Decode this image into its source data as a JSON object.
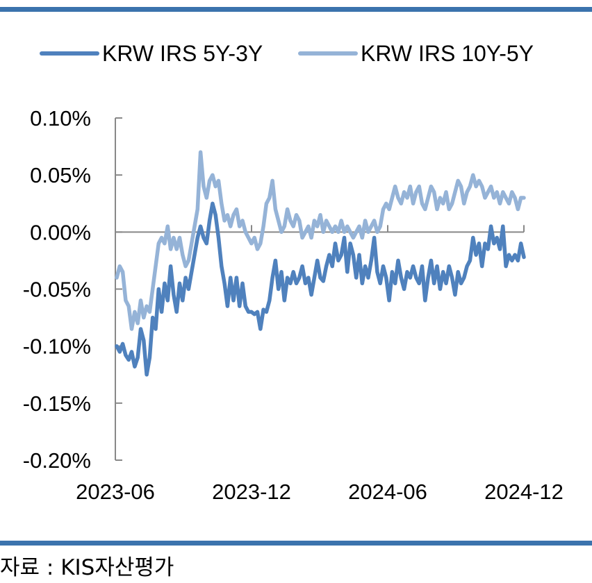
{
  "colors": {
    "rule": "#3b73ad",
    "series_dark": "#4f81bd",
    "series_light": "#95b3d7",
    "axis": "#888888"
  },
  "source_note": "자료 : KIS자산평가",
  "chart_data": {
    "type": "line",
    "title": "",
    "xlabel": "",
    "ylabel": "",
    "y_unit": "%",
    "ylim": [
      -0.2,
      0.1
    ],
    "y_ticks": [
      0.1,
      0.05,
      0.0,
      -0.05,
      -0.1,
      -0.15,
      -0.2
    ],
    "y_tick_labels": [
      "0.10%",
      "0.05%",
      "0.00%",
      "-0.05%",
      "-0.10%",
      "-0.15%",
      "-0.20%"
    ],
    "x_ticks": [
      "2023-06",
      "2023-12",
      "2024-06",
      "2024-12"
    ],
    "x_range": [
      "2023-06-01",
      "2024-12-01"
    ],
    "grid": false,
    "legend_position": "top",
    "series": [
      {
        "name": "KRW IRS 5Y-3Y",
        "color": "#4f81bd",
        "points": [
          [
            "2023-06-01",
            -0.1
          ],
          [
            "2023-06-05",
            -0.105
          ],
          [
            "2023-06-09",
            -0.098
          ],
          [
            "2023-06-13",
            -0.108
          ],
          [
            "2023-06-17",
            -0.112
          ],
          [
            "2023-06-21",
            -0.105
          ],
          [
            "2023-06-25",
            -0.118
          ],
          [
            "2023-06-29",
            -0.11
          ],
          [
            "2023-07-03",
            -0.085
          ],
          [
            "2023-07-07",
            -0.095
          ],
          [
            "2023-07-11",
            -0.125
          ],
          [
            "2023-07-15",
            -0.11
          ],
          [
            "2023-07-19",
            -0.075
          ],
          [
            "2023-07-23",
            -0.085
          ],
          [
            "2023-07-27",
            -0.05
          ],
          [
            "2023-07-31",
            -0.07
          ],
          [
            "2023-08-04",
            -0.045
          ],
          [
            "2023-08-08",
            -0.06
          ],
          [
            "2023-08-12",
            -0.03
          ],
          [
            "2023-08-16",
            -0.055
          ],
          [
            "2023-08-20",
            -0.07
          ],
          [
            "2023-08-24",
            -0.045
          ],
          [
            "2023-08-28",
            -0.06
          ],
          [
            "2023-09-01",
            -0.04
          ],
          [
            "2023-09-05",
            -0.05
          ],
          [
            "2023-09-09",
            -0.035
          ],
          [
            "2023-09-13",
            -0.02
          ],
          [
            "2023-09-17",
            -0.005
          ],
          [
            "2023-09-21",
            0.005
          ],
          [
            "2023-09-25",
            -0.005
          ],
          [
            "2023-09-29",
            -0.01
          ],
          [
            "2023-10-03",
            0.01
          ],
          [
            "2023-10-07",
            0.025
          ],
          [
            "2023-10-11",
            0.015
          ],
          [
            "2023-10-15",
            -0.005
          ],
          [
            "2023-10-19",
            -0.03
          ],
          [
            "2023-10-23",
            -0.045
          ],
          [
            "2023-10-27",
            -0.065
          ],
          [
            "2023-10-31",
            -0.04
          ],
          [
            "2023-11-04",
            -0.06
          ],
          [
            "2023-11-08",
            -0.04
          ],
          [
            "2023-11-12",
            -0.065
          ],
          [
            "2023-11-16",
            -0.045
          ],
          [
            "2023-11-20",
            -0.065
          ],
          [
            "2023-11-24",
            -0.07
          ],
          [
            "2023-11-28",
            -0.07
          ],
          [
            "2023-12-02",
            -0.072
          ],
          [
            "2023-12-06",
            -0.07
          ],
          [
            "2023-12-10",
            -0.085
          ],
          [
            "2023-12-14",
            -0.068
          ],
          [
            "2023-12-18",
            -0.07
          ],
          [
            "2023-12-22",
            -0.06
          ],
          [
            "2023-12-26",
            -0.04
          ],
          [
            "2023-12-30",
            -0.025
          ],
          [
            "2024-01-03",
            -0.05
          ],
          [
            "2024-01-07",
            -0.035
          ],
          [
            "2024-01-11",
            -0.06
          ],
          [
            "2024-01-15",
            -0.04
          ],
          [
            "2024-01-19",
            -0.045
          ],
          [
            "2024-01-23",
            -0.035
          ],
          [
            "2024-01-27",
            -0.045
          ],
          [
            "2024-01-31",
            -0.04
          ],
          [
            "2024-02-04",
            -0.03
          ],
          [
            "2024-02-08",
            -0.045
          ],
          [
            "2024-02-12",
            -0.04
          ],
          [
            "2024-02-16",
            -0.055
          ],
          [
            "2024-02-20",
            -0.04
          ],
          [
            "2024-02-24",
            -0.025
          ],
          [
            "2024-02-28",
            -0.04
          ],
          [
            "2024-03-03",
            -0.043
          ],
          [
            "2024-03-07",
            -0.03
          ],
          [
            "2024-03-11",
            -0.02
          ],
          [
            "2024-03-15",
            -0.03
          ],
          [
            "2024-03-19",
            -0.01
          ],
          [
            "2024-03-23",
            -0.025
          ],
          [
            "2024-03-27",
            -0.02
          ],
          [
            "2024-03-31",
            -0.005
          ],
          [
            "2024-04-04",
            -0.035
          ],
          [
            "2024-04-08",
            -0.01
          ],
          [
            "2024-04-12",
            -0.02
          ],
          [
            "2024-04-16",
            -0.04
          ],
          [
            "2024-04-20",
            -0.02
          ],
          [
            "2024-04-24",
            -0.045
          ],
          [
            "2024-04-28",
            -0.03
          ],
          [
            "2024-05-02",
            -0.04
          ],
          [
            "2024-05-06",
            -0.025
          ],
          [
            "2024-05-10",
            -0.005
          ],
          [
            "2024-05-14",
            -0.035
          ],
          [
            "2024-05-18",
            -0.045
          ],
          [
            "2024-05-22",
            -0.03
          ],
          [
            "2024-05-26",
            -0.04
          ],
          [
            "2024-05-30",
            -0.06
          ],
          [
            "2024-06-03",
            -0.035
          ],
          [
            "2024-06-07",
            -0.045
          ],
          [
            "2024-06-11",
            -0.025
          ],
          [
            "2024-06-15",
            -0.04
          ],
          [
            "2024-06-19",
            -0.05
          ],
          [
            "2024-06-23",
            -0.035
          ],
          [
            "2024-06-27",
            -0.04
          ],
          [
            "2024-07-01",
            -0.03
          ],
          [
            "2024-07-05",
            -0.04
          ],
          [
            "2024-07-09",
            -0.045
          ],
          [
            "2024-07-13",
            -0.03
          ],
          [
            "2024-07-17",
            -0.06
          ],
          [
            "2024-07-21",
            -0.04
          ],
          [
            "2024-07-25",
            -0.025
          ],
          [
            "2024-07-29",
            -0.045
          ],
          [
            "2024-08-02",
            -0.03
          ],
          [
            "2024-08-06",
            -0.05
          ],
          [
            "2024-08-10",
            -0.035
          ],
          [
            "2024-08-14",
            -0.045
          ],
          [
            "2024-08-18",
            -0.03
          ],
          [
            "2024-08-22",
            -0.04
          ],
          [
            "2024-08-26",
            -0.055
          ],
          [
            "2024-08-30",
            -0.035
          ],
          [
            "2024-09-03",
            -0.045
          ],
          [
            "2024-09-07",
            -0.04
          ],
          [
            "2024-09-11",
            -0.03
          ],
          [
            "2024-09-15",
            -0.025
          ],
          [
            "2024-09-19",
            -0.005
          ],
          [
            "2024-09-23",
            -0.02
          ],
          [
            "2024-09-27",
            -0.01
          ],
          [
            "2024-10-01",
            -0.03
          ],
          [
            "2024-10-05",
            -0.01
          ],
          [
            "2024-10-09",
            -0.015
          ],
          [
            "2024-10-13",
            0.005
          ],
          [
            "2024-10-17",
            -0.01
          ],
          [
            "2024-10-21",
            -0.005
          ],
          [
            "2024-10-25",
            -0.015
          ],
          [
            "2024-10-29",
            0.005
          ],
          [
            "2024-11-02",
            -0.03
          ],
          [
            "2024-11-06",
            -0.02
          ],
          [
            "2024-11-10",
            -0.025
          ],
          [
            "2024-11-14",
            -0.02
          ],
          [
            "2024-11-18",
            -0.025
          ],
          [
            "2024-11-22",
            -0.01
          ],
          [
            "2024-11-26",
            -0.022
          ]
        ]
      },
      {
        "name": "KRW IRS 10Y-5Y",
        "color": "#95b3d7",
        "points": [
          [
            "2023-06-01",
            -0.04
          ],
          [
            "2023-06-05",
            -0.03
          ],
          [
            "2023-06-09",
            -0.035
          ],
          [
            "2023-06-13",
            -0.06
          ],
          [
            "2023-06-17",
            -0.065
          ],
          [
            "2023-06-21",
            -0.085
          ],
          [
            "2023-06-25",
            -0.07
          ],
          [
            "2023-06-29",
            -0.08
          ],
          [
            "2023-07-03",
            -0.06
          ],
          [
            "2023-07-07",
            -0.075
          ],
          [
            "2023-07-11",
            -0.065
          ],
          [
            "2023-07-15",
            -0.07
          ],
          [
            "2023-07-19",
            -0.05
          ],
          [
            "2023-07-23",
            -0.03
          ],
          [
            "2023-07-27",
            -0.01
          ],
          [
            "2023-07-31",
            -0.005
          ],
          [
            "2023-08-04",
            -0.01
          ],
          [
            "2023-08-08",
            0.005
          ],
          [
            "2023-08-12",
            -0.015
          ],
          [
            "2023-08-16",
            -0.005
          ],
          [
            "2023-08-20",
            -0.015
          ],
          [
            "2023-08-24",
            -0.005
          ],
          [
            "2023-08-28",
            -0.02
          ],
          [
            "2023-09-01",
            -0.03
          ],
          [
            "2023-09-05",
            -0.025
          ],
          [
            "2023-09-09",
            -0.01
          ],
          [
            "2023-09-13",
            0.005
          ],
          [
            "2023-09-17",
            0.02
          ],
          [
            "2023-09-21",
            0.07
          ],
          [
            "2023-09-25",
            0.04
          ],
          [
            "2023-09-29",
            0.03
          ],
          [
            "2023-10-03",
            0.045
          ],
          [
            "2023-10-07",
            0.05
          ],
          [
            "2023-10-11",
            0.04
          ],
          [
            "2023-10-15",
            0.045
          ],
          [
            "2023-10-19",
            0.025
          ],
          [
            "2023-10-23",
            0.01
          ],
          [
            "2023-10-27",
            0.015
          ],
          [
            "2023-10-31",
            0.005
          ],
          [
            "2023-11-04",
            0.015
          ],
          [
            "2023-11-08",
            0.02
          ],
          [
            "2023-11-12",
            0.005
          ],
          [
            "2023-11-16",
            0.01
          ],
          [
            "2023-11-20",
            0.0
          ],
          [
            "2023-11-24",
            -0.005
          ],
          [
            "2023-11-28",
            -0.01
          ],
          [
            "2023-12-02",
            -0.005
          ],
          [
            "2023-12-06",
            -0.015
          ],
          [
            "2023-12-10",
            -0.01
          ],
          [
            "2023-12-14",
            0.005
          ],
          [
            "2023-12-18",
            0.025
          ],
          [
            "2023-12-22",
            0.03
          ],
          [
            "2023-12-26",
            0.045
          ],
          [
            "2023-12-30",
            0.02
          ],
          [
            "2024-01-03",
            0.01
          ],
          [
            "2024-01-07",
            0.0
          ],
          [
            "2024-01-11",
            0.005
          ],
          [
            "2024-01-15",
            0.02
          ],
          [
            "2024-01-19",
            0.01
          ],
          [
            "2024-01-23",
            0.005
          ],
          [
            "2024-01-27",
            0.015
          ],
          [
            "2024-01-31",
            0.01
          ],
          [
            "2024-02-04",
            -0.005
          ],
          [
            "2024-02-08",
            0.0
          ],
          [
            "2024-02-12",
            0.005
          ],
          [
            "2024-02-16",
            -0.005
          ],
          [
            "2024-02-20",
            0.01
          ],
          [
            "2024-02-24",
            0.005
          ],
          [
            "2024-02-28",
            0.015
          ],
          [
            "2024-03-03",
            0.0
          ],
          [
            "2024-03-07",
            0.01
          ],
          [
            "2024-03-11",
            0.005
          ],
          [
            "2024-03-15",
            0.0
          ],
          [
            "2024-03-19",
            0.005
          ],
          [
            "2024-03-23",
            0.0
          ],
          [
            "2024-03-27",
            0.01
          ],
          [
            "2024-03-31",
            0.0
          ],
          [
            "2024-04-04",
            0.005
          ],
          [
            "2024-04-08",
            0.0
          ],
          [
            "2024-04-12",
            -0.005
          ],
          [
            "2024-04-16",
            0.0
          ],
          [
            "2024-04-20",
            0.005
          ],
          [
            "2024-04-24",
            -0.005
          ],
          [
            "2024-04-28",
            0.01
          ],
          [
            "2024-05-02",
            0.0
          ],
          [
            "2024-05-06",
            0.005
          ],
          [
            "2024-05-10",
            0.01
          ],
          [
            "2024-05-14",
            0.0
          ],
          [
            "2024-05-18",
            0.005
          ],
          [
            "2024-05-22",
            0.02
          ],
          [
            "2024-05-26",
            0.025
          ],
          [
            "2024-05-30",
            0.02
          ],
          [
            "2024-06-03",
            0.03
          ],
          [
            "2024-06-07",
            0.04
          ],
          [
            "2024-06-11",
            0.03
          ],
          [
            "2024-06-15",
            0.025
          ],
          [
            "2024-06-19",
            0.035
          ],
          [
            "2024-06-23",
            0.03
          ],
          [
            "2024-06-27",
            0.04
          ],
          [
            "2024-07-01",
            0.025
          ],
          [
            "2024-07-05",
            0.035
          ],
          [
            "2024-07-09",
            0.04
          ],
          [
            "2024-07-13",
            0.025
          ],
          [
            "2024-07-17",
            0.02
          ],
          [
            "2024-07-21",
            0.03
          ],
          [
            "2024-07-25",
            0.04
          ],
          [
            "2024-07-29",
            0.035
          ],
          [
            "2024-08-02",
            0.02
          ],
          [
            "2024-08-06",
            0.03
          ],
          [
            "2024-08-10",
            0.025
          ],
          [
            "2024-08-14",
            0.035
          ],
          [
            "2024-08-18",
            0.02
          ],
          [
            "2024-08-22",
            0.025
          ],
          [
            "2024-08-26",
            0.035
          ],
          [
            "2024-08-30",
            0.045
          ],
          [
            "2024-09-03",
            0.04
          ],
          [
            "2024-09-07",
            0.025
          ],
          [
            "2024-09-11",
            0.035
          ],
          [
            "2024-09-15",
            0.04
          ],
          [
            "2024-09-19",
            0.05
          ],
          [
            "2024-09-23",
            0.04
          ],
          [
            "2024-09-27",
            0.045
          ],
          [
            "2024-10-01",
            0.04
          ],
          [
            "2024-10-05",
            0.03
          ],
          [
            "2024-10-09",
            0.035
          ],
          [
            "2024-10-13",
            0.04
          ],
          [
            "2024-10-17",
            0.03
          ],
          [
            "2024-10-21",
            0.035
          ],
          [
            "2024-10-25",
            0.025
          ],
          [
            "2024-10-29",
            0.035
          ],
          [
            "2024-11-02",
            0.03
          ],
          [
            "2024-11-06",
            0.025
          ],
          [
            "2024-11-10",
            0.035
          ],
          [
            "2024-11-14",
            0.03
          ],
          [
            "2024-11-18",
            0.02
          ],
          [
            "2024-11-22",
            0.03
          ],
          [
            "2024-11-26",
            0.03
          ]
        ]
      }
    ]
  }
}
